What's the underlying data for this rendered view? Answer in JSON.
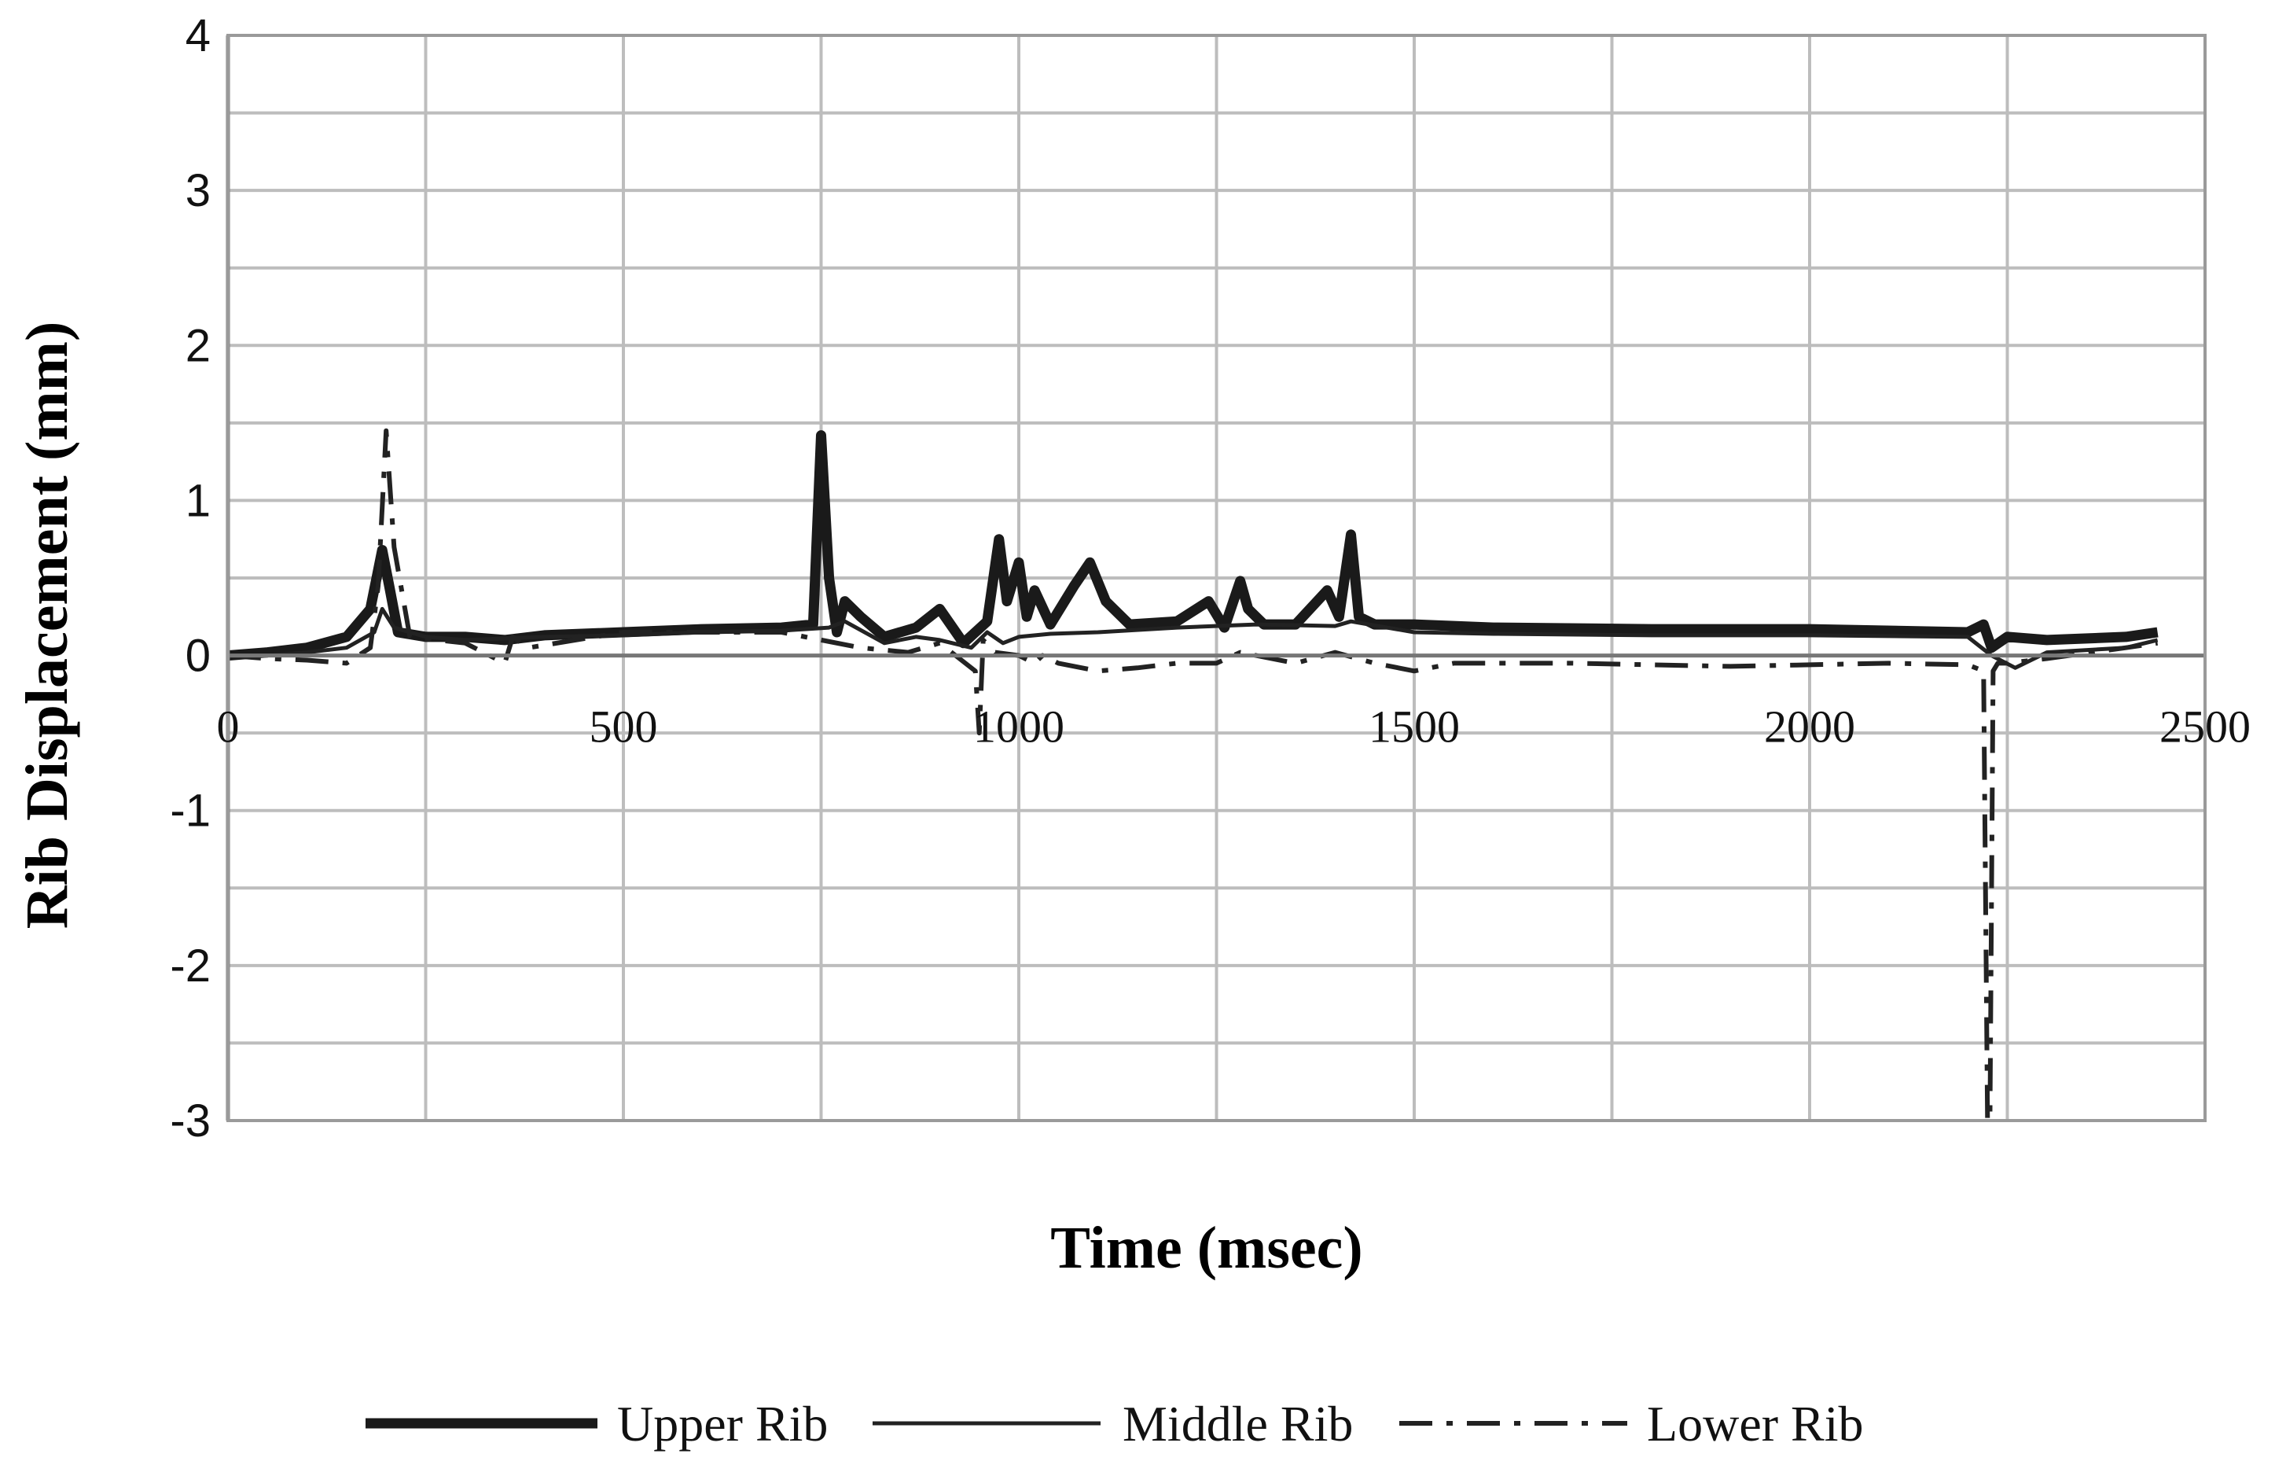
{
  "chart_data": {
    "type": "line",
    "xlabel": "Time (msec)",
    "ylabel": "Rib Displacement (mm)",
    "xlim": [
      0,
      2500
    ],
    "ylim": [
      -3,
      4
    ],
    "x_ticks": [
      "0",
      "500",
      "1000",
      "1500",
      "2000",
      "2500"
    ],
    "y_ticks": [
      "4",
      "3",
      "2",
      "1",
      "0",
      "-1",
      "-2",
      "-3"
    ],
    "grid": true,
    "legend_position": "bottom",
    "series": [
      {
        "name": "Upper Rib",
        "style": "thick",
        "x": [
          0,
          50,
          100,
          150,
          180,
          195,
          205,
          215,
          250,
          300,
          350,
          400,
          500,
          600,
          700,
          740,
          750,
          760,
          770,
          780,
          800,
          830,
          870,
          900,
          930,
          960,
          975,
          985,
          1000,
          1010,
          1020,
          1040,
          1070,
          1090,
          1110,
          1140,
          1200,
          1240,
          1260,
          1280,
          1290,
          1310,
          1350,
          1390,
          1405,
          1420,
          1430,
          1450,
          1500,
          1600,
          1800,
          2000,
          2200,
          2220,
          2230,
          2250,
          2300,
          2400,
          2440
        ],
        "y": [
          0.0,
          0.02,
          0.05,
          0.12,
          0.3,
          0.68,
          0.42,
          0.15,
          0.12,
          0.12,
          0.1,
          0.13,
          0.15,
          0.17,
          0.18,
          0.2,
          1.42,
          0.5,
          0.15,
          0.35,
          0.25,
          0.12,
          0.18,
          0.3,
          0.08,
          0.22,
          0.75,
          0.35,
          0.6,
          0.25,
          0.42,
          0.2,
          0.45,
          0.6,
          0.35,
          0.2,
          0.22,
          0.35,
          0.18,
          0.48,
          0.3,
          0.2,
          0.2,
          0.42,
          0.25,
          0.78,
          0.25,
          0.2,
          0.2,
          0.18,
          0.17,
          0.17,
          0.15,
          0.2,
          0.05,
          0.12,
          0.1,
          0.12,
          0.15
        ]
      },
      {
        "name": "Middle Rib",
        "style": "thin",
        "x": [
          0,
          50,
          100,
          150,
          185,
          195,
          210,
          250,
          300,
          400,
          500,
          600,
          700,
          760,
          780,
          830,
          870,
          900,
          940,
          960,
          980,
          1000,
          1040,
          1100,
          1200,
          1300,
          1400,
          1420,
          1500,
          1600,
          1800,
          2000,
          2200,
          2230,
          2260,
          2300,
          2400,
          2440
        ],
        "y": [
          0.0,
          0.0,
          0.02,
          0.05,
          0.15,
          0.3,
          0.18,
          0.12,
          0.1,
          0.12,
          0.13,
          0.15,
          0.16,
          0.18,
          0.22,
          0.08,
          0.12,
          0.1,
          0.05,
          0.15,
          0.08,
          0.12,
          0.14,
          0.15,
          0.18,
          0.2,
          0.19,
          0.22,
          0.15,
          0.14,
          0.13,
          0.13,
          0.12,
          0.0,
          -0.08,
          0.02,
          0.05,
          0.1
        ]
      },
      {
        "name": "Lower Rib",
        "style": "dashed",
        "x": [
          0,
          50,
          100,
          150,
          180,
          190,
          200,
          210,
          230,
          300,
          350,
          360,
          380,
          500,
          700,
          800,
          860,
          900,
          945,
          950,
          955,
          970,
          1000,
          1020,
          1030,
          1050,
          1100,
          1150,
          1200,
          1250,
          1280,
          1300,
          1350,
          1400,
          1450,
          1500,
          1550,
          1700,
          1800,
          1900,
          2000,
          2100,
          2200,
          2220,
          2225,
          2228,
          2232,
          2238,
          2250,
          2300,
          2400,
          2440
        ],
        "y": [
          0.0,
          -0.02,
          -0.03,
          -0.05,
          0.05,
          0.45,
          1.45,
          0.7,
          0.12,
          0.08,
          -0.05,
          0.12,
          0.05,
          0.15,
          0.15,
          0.05,
          0.02,
          0.08,
          -0.1,
          -0.5,
          0.1,
          0.02,
          0.0,
          -0.05,
          0.0,
          -0.05,
          -0.1,
          -0.08,
          -0.05,
          -0.05,
          0.02,
          0.0,
          -0.05,
          0.02,
          -0.05,
          -0.1,
          -0.05,
          -0.05,
          -0.06,
          -0.07,
          -0.06,
          -0.05,
          -0.06,
          -0.1,
          -3.0,
          -3.0,
          -0.1,
          -0.05,
          -0.05,
          -0.02,
          0.05,
          0.08
        ]
      }
    ]
  }
}
